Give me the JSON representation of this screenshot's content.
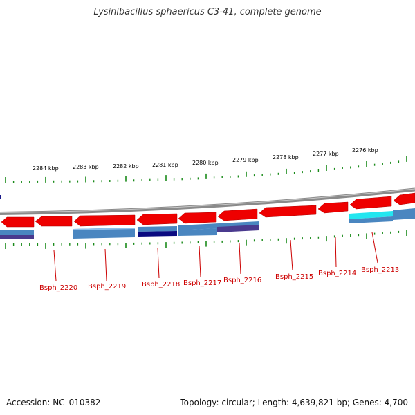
{
  "title": "Lysinibacillus sphaericus C3-41, complete genome",
  "accession": "Accession: NC_010382",
  "summary": "Topology: circular; Length: 4,639,821 bp; Genes: 4,700",
  "colors": {
    "gene": "#ee0000",
    "backbone": "#8a8a8a",
    "tick": "#1a8a1a",
    "label": "#cc0000",
    "feature_blue": "#4a86c0",
    "feature_navy": "#0a0a80",
    "feature_cyan": "#22e6f0",
    "feature_purple": "#4a3a8e"
  },
  "kbp_labels": [
    "2284 kbp",
    "2283 kbp",
    "2282 kbp",
    "2281 kbp",
    "2280 kbp",
    "2279 kbp",
    "2278 kbp",
    "2277 kbp",
    "2276 kbp"
  ],
  "gene_labels": [
    "Bsph_2220",
    "Bsph_2219",
    "Bsph_2218",
    "Bsph_2217",
    "Bsph_2216",
    "Bsph_2215",
    "Bsph_2214",
    "Bsph_2213"
  ]
}
